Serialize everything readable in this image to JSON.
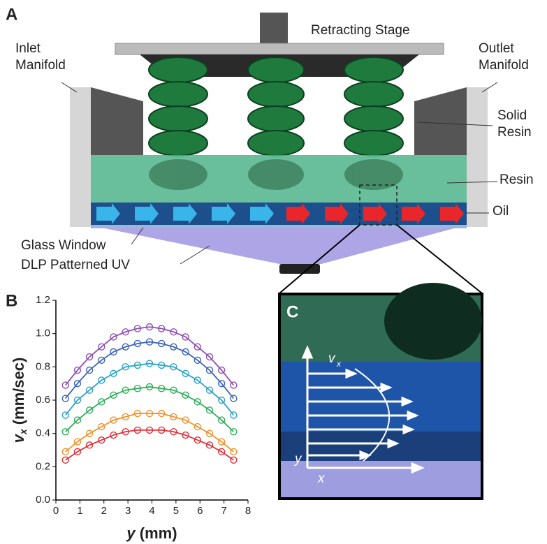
{
  "panel_labels": [
    "A",
    "B",
    "C"
  ],
  "diagram": {
    "retracting_stage": "Retracting Stage",
    "inlet_manifold": [
      "Inlet",
      "Manifold"
    ],
    "outlet_manifold": [
      "Outlet",
      "Manifold"
    ],
    "solid_resin": [
      "Solid",
      "Resin"
    ],
    "resin": "Resin",
    "oil": "Oil",
    "glass_window": "Glass Window",
    "dlp": "DLP Patterned UV"
  },
  "photo": {
    "velocity_var": "v",
    "velocity_sub": "x",
    "y_axis": "y",
    "x_axis": "x"
  },
  "chart_data": {
    "type": "scatter",
    "xlabel_var": "y",
    "xlabel_unit": "(mm)",
    "ylabel_var": "v",
    "ylabel_sub": "x",
    "ylabel_unit": "(mm/sec)",
    "xlim": [
      0,
      8
    ],
    "xticks": [
      0,
      1,
      2,
      3,
      4,
      5,
      6,
      7,
      8
    ],
    "ylim": [
      0,
      1.2
    ],
    "yticks": [
      {
        "value": 0,
        "label": "0.0"
      },
      0.2,
      0.4,
      0.6,
      0.8,
      {
        "value": 1,
        "label": "1.0"
      },
      1.2
    ],
    "x": [
      0.4,
      0.9,
      1.4,
      1.9,
      2.4,
      2.9,
      3.4,
      3.9,
      4.4,
      4.9,
      5.4,
      5.9,
      6.4,
      6.9,
      7.4
    ],
    "series": [
      {
        "color": "#e0303a",
        "values": [
          0.24,
          0.29,
          0.33,
          0.36,
          0.39,
          0.41,
          0.42,
          0.42,
          0.42,
          0.41,
          0.39,
          0.36,
          0.33,
          0.29,
          0.24
        ]
      },
      {
        "color": "#f0922e",
        "values": [
          0.29,
          0.35,
          0.4,
          0.44,
          0.48,
          0.5,
          0.52,
          0.52,
          0.52,
          0.5,
          0.48,
          0.44,
          0.4,
          0.35,
          0.29
        ]
      },
      {
        "color": "#2fae5a",
        "values": [
          0.41,
          0.48,
          0.54,
          0.59,
          0.63,
          0.66,
          0.67,
          0.68,
          0.67,
          0.66,
          0.63,
          0.59,
          0.54,
          0.48,
          0.41
        ]
      },
      {
        "color": "#2aa3c9",
        "values": [
          0.51,
          0.6,
          0.66,
          0.72,
          0.76,
          0.8,
          0.81,
          0.82,
          0.81,
          0.8,
          0.76,
          0.72,
          0.66,
          0.6,
          0.51
        ]
      },
      {
        "color": "#3b63b8",
        "values": [
          0.61,
          0.7,
          0.78,
          0.84,
          0.89,
          0.92,
          0.94,
          0.95,
          0.94,
          0.92,
          0.89,
          0.84,
          0.78,
          0.7,
          0.61
        ]
      },
      {
        "color": "#8e4fb5",
        "values": [
          0.69,
          0.78,
          0.86,
          0.92,
          0.98,
          1.01,
          1.03,
          1.04,
          1.03,
          1.01,
          0.98,
          0.92,
          0.86,
          0.78,
          0.69
        ]
      }
    ]
  }
}
